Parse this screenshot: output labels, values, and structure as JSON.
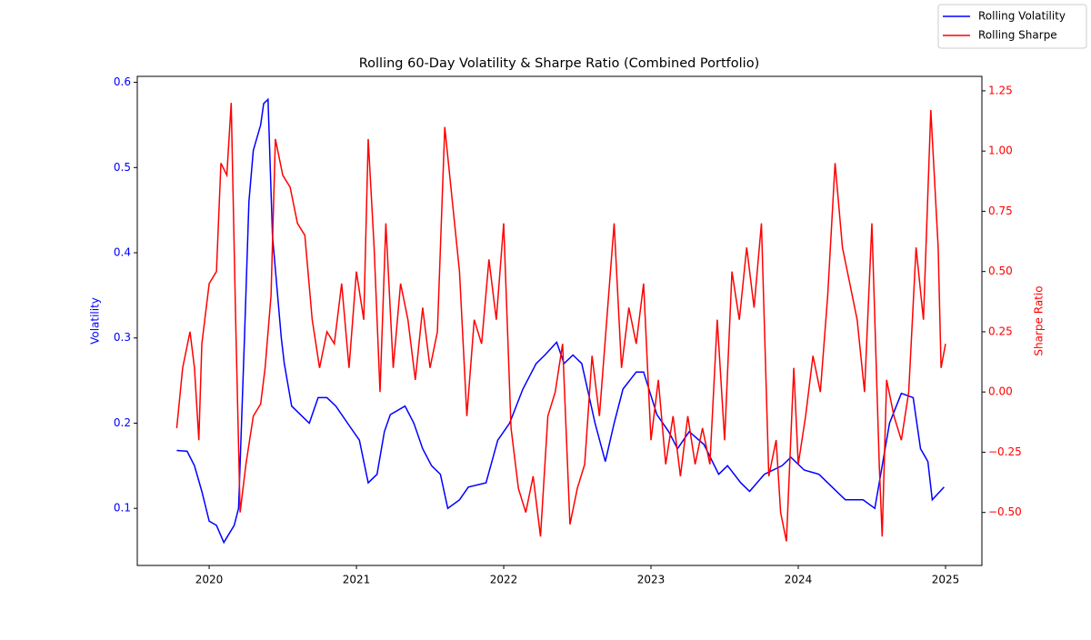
{
  "chart_data": {
    "type": "line",
    "title": "Rolling 60-Day Volatility & Sharpe Ratio (Combined Portfolio)",
    "ylabel": "Volatility",
    "y2label": "Sharpe Ratio",
    "xlim": [
      2019.512,
      2025.247
    ],
    "xticks": [
      2020,
      2021,
      2022,
      2023,
      2024,
      2025
    ],
    "ylim": [
      0.033,
      0.607
    ],
    "yticks": [
      0.1,
      0.2,
      0.3,
      0.4,
      0.5,
      0.6
    ],
    "y2lim": [
      -0.72,
      1.31
    ],
    "y2ticks": [
      {
        "value": -0.5,
        "label": "−0.50"
      },
      {
        "value": -0.25,
        "label": "−0.25"
      },
      {
        "value": 0,
        "label": "0.00"
      },
      {
        "value": 0.25,
        "label": "0.25"
      },
      {
        "value": 0.5,
        "label": "0.50"
      },
      {
        "value": 0.75,
        "label": "0.75"
      },
      {
        "value": 1,
        "label": "1.00"
      },
      {
        "value": 1.25,
        "label": "1.25"
      }
    ],
    "legend": "upper right",
    "series": [
      {
        "name": "Rolling Volatility",
        "color": "#0000ff",
        "x": [
          2019.78,
          2019.85,
          2019.9,
          2019.95,
          2020.0,
          2020.05,
          2020.1,
          2020.17,
          2020.2,
          2020.24,
          2020.27,
          2020.3,
          2020.35,
          2020.37,
          2020.4,
          2020.43,
          2020.49,
          2020.51,
          2020.56,
          2020.68,
          2020.74,
          2020.8,
          2020.86,
          2020.94,
          2021.02,
          2021.08,
          2021.14,
          2021.19,
          2021.23,
          2021.33,
          2021.39,
          2021.45,
          2021.51,
          2021.57,
          2021.62,
          2021.7,
          2021.76,
          2021.88,
          2021.96,
          2022.04,
          2022.13,
          2022.22,
          2022.28,
          2022.36,
          2022.41,
          2022.47,
          2022.53,
          2022.62,
          2022.69,
          2022.75,
          2022.81,
          2022.9,
          2022.95,
          2023.04,
          2023.12,
          2023.18,
          2023.26,
          2023.36,
          2023.46,
          2023.52,
          2023.61,
          2023.67,
          2023.77,
          2023.89,
          2023.95,
          2024.04,
          2024.14,
          2024.23,
          2024.32,
          2024.44,
          2024.52,
          2024.56,
          2024.62,
          2024.7,
          2024.78,
          2024.83,
          2024.88,
          2024.91,
          2024.99
        ],
        "values": [
          0.168,
          0.167,
          0.15,
          0.12,
          0.085,
          0.08,
          0.06,
          0.08,
          0.1,
          0.3,
          0.46,
          0.52,
          0.55,
          0.575,
          0.58,
          0.42,
          0.3,
          0.27,
          0.22,
          0.2,
          0.23,
          0.23,
          0.22,
          0.2,
          0.18,
          0.13,
          0.14,
          0.19,
          0.21,
          0.22,
          0.2,
          0.17,
          0.15,
          0.14,
          0.1,
          0.11,
          0.125,
          0.13,
          0.18,
          0.2,
          0.24,
          0.27,
          0.28,
          0.295,
          0.27,
          0.28,
          0.27,
          0.2,
          0.155,
          0.2,
          0.24,
          0.26,
          0.26,
          0.21,
          0.19,
          0.17,
          0.19,
          0.175,
          0.14,
          0.15,
          0.13,
          0.12,
          0.14,
          0.15,
          0.16,
          0.145,
          0.14,
          0.125,
          0.11,
          0.11,
          0.1,
          0.14,
          0.2,
          0.235,
          0.23,
          0.17,
          0.155,
          0.11,
          0.125
        ]
      },
      {
        "name": "Rolling Sharpe",
        "color": "#ff0000",
        "axis": "y2",
        "x": [
          2019.78,
          2019.82,
          2019.87,
          2019.9,
          2019.93,
          2019.95,
          2020.0,
          2020.05,
          2020.08,
          2020.12,
          2020.15,
          2020.18,
          2020.21,
          2020.25,
          2020.3,
          2020.35,
          2020.38,
          2020.42,
          2020.45,
          2020.5,
          2020.55,
          2020.6,
          2020.65,
          2020.7,
          2020.75,
          2020.8,
          2020.85,
          2020.9,
          2020.95,
          2021.0,
          2021.05,
          2021.08,
          2021.12,
          2021.16,
          2021.2,
          2021.25,
          2021.3,
          2021.35,
          2021.4,
          2021.45,
          2021.5,
          2021.55,
          2021.6,
          2021.65,
          2021.7,
          2021.75,
          2021.8,
          2021.85,
          2021.9,
          2021.95,
          2022.0,
          2022.05,
          2022.1,
          2022.15,
          2022.2,
          2022.25,
          2022.3,
          2022.35,
          2022.4,
          2022.45,
          2022.5,
          2022.55,
          2022.6,
          2022.65,
          2022.7,
          2022.75,
          2022.8,
          2022.85,
          2022.9,
          2022.95,
          2023.0,
          2023.05,
          2023.1,
          2023.15,
          2023.2,
          2023.25,
          2023.3,
          2023.35,
          2023.4,
          2023.45,
          2023.5,
          2023.55,
          2023.6,
          2023.65,
          2023.7,
          2023.75,
          2023.8,
          2023.85,
          2023.88,
          2023.92,
          2023.97,
          2024.0,
          2024.05,
          2024.1,
          2024.15,
          2024.2,
          2024.25,
          2024.3,
          2024.35,
          2024.4,
          2024.45,
          2024.5,
          2024.55,
          2024.57,
          2024.6,
          2024.65,
          2024.7,
          2024.75,
          2024.8,
          2024.85,
          2024.9,
          2024.95,
          2024.97,
          2025.0
        ],
        "values": [
          -0.15,
          0.1,
          0.25,
          0.1,
          -0.2,
          0.2,
          0.45,
          0.5,
          0.95,
          0.9,
          1.2,
          0.3,
          -0.5,
          -0.3,
          -0.1,
          -0.05,
          0.1,
          0.4,
          1.05,
          0.9,
          0.85,
          0.7,
          0.65,
          0.3,
          0.1,
          0.25,
          0.2,
          0.45,
          0.1,
          0.5,
          0.3,
          1.05,
          0.6,
          0.0,
          0.7,
          0.1,
          0.45,
          0.3,
          0.05,
          0.35,
          0.1,
          0.25,
          1.1,
          0.8,
          0.5,
          -0.1,
          0.3,
          0.2,
          0.55,
          0.3,
          0.7,
          -0.15,
          -0.4,
          -0.5,
          -0.35,
          -0.6,
          -0.1,
          0.0,
          0.2,
          -0.55,
          -0.4,
          -0.3,
          0.15,
          -0.1,
          0.3,
          0.7,
          0.1,
          0.35,
          0.2,
          0.45,
          -0.2,
          0.05,
          -0.3,
          -0.1,
          -0.35,
          -0.1,
          -0.3,
          -0.15,
          -0.3,
          0.3,
          -0.2,
          0.5,
          0.3,
          0.6,
          0.35,
          0.7,
          -0.35,
          -0.2,
          -0.5,
          -0.62,
          0.1,
          -0.3,
          -0.1,
          0.15,
          0.0,
          0.4,
          0.95,
          0.6,
          0.45,
          0.3,
          0.0,
          0.7,
          -0.3,
          -0.6,
          0.05,
          -0.1,
          -0.2,
          0.0,
          0.6,
          0.3,
          1.17,
          0.6,
          0.1,
          0.2
        ]
      }
    ]
  }
}
